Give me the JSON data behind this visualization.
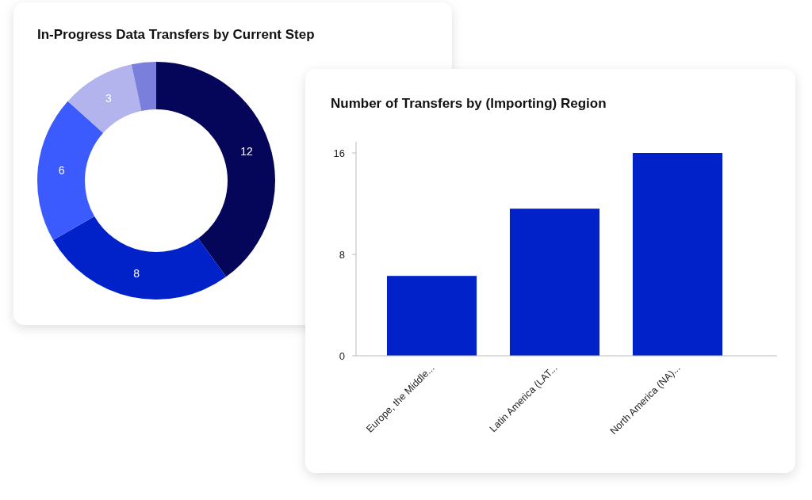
{
  "chart_data": [
    {
      "type": "donut",
      "title": "In-Progress Data Transfers by Current Step",
      "categories": [
        null,
        null,
        null,
        null,
        null
      ],
      "values": [
        12,
        8,
        6,
        3,
        1
      ],
      "colors": [
        "#05055a",
        "#0022c8",
        "#3b5bff",
        "#b3b3ee",
        "#7b7fdc"
      ],
      "value_labels": [
        "12",
        "8",
        "6",
        "3",
        null
      ]
    },
    {
      "type": "bar",
      "title": "Number of Transfers by (Importing) Region",
      "categories": [
        "Europe, the Middle...",
        "Latin America (LAT...",
        "North America (NA)..."
      ],
      "values": [
        6.3,
        11.6,
        16
      ],
      "color": "#0022c8",
      "ylim": [
        0,
        16
      ],
      "yticks": [
        0,
        8,
        16
      ],
      "grid": false
    }
  ]
}
